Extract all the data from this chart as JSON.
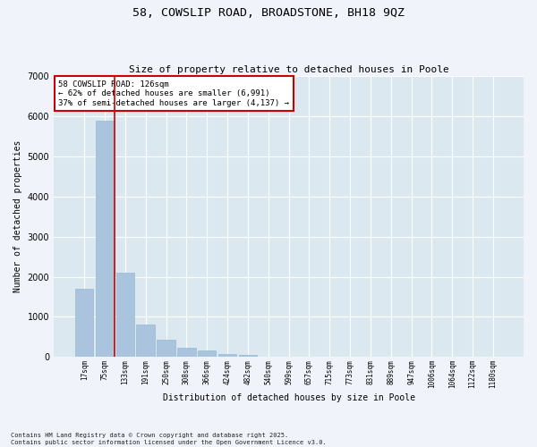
{
  "title1": "58, COWSLIP ROAD, BROADSTONE, BH18 9QZ",
  "title2": "Size of property relative to detached houses in Poole",
  "xlabel": "Distribution of detached houses by size in Poole",
  "ylabel": "Number of detached properties",
  "annotation_title": "58 COWSLIP ROAD: 126sqm",
  "annotation_line1": "← 62% of detached houses are smaller (6,991)",
  "annotation_line2": "37% of semi-detached houses are larger (4,137) →",
  "categories": [
    "17sqm",
    "75sqm",
    "133sqm",
    "191sqm",
    "250sqm",
    "308sqm",
    "366sqm",
    "424sqm",
    "482sqm",
    "540sqm",
    "599sqm",
    "657sqm",
    "715sqm",
    "773sqm",
    "831sqm",
    "889sqm",
    "947sqm",
    "1006sqm",
    "1064sqm",
    "1122sqm",
    "1180sqm"
  ],
  "values": [
    1700,
    5900,
    2100,
    800,
    420,
    230,
    160,
    80,
    50,
    15,
    5,
    2,
    0,
    0,
    0,
    0,
    0,
    0,
    0,
    0,
    0
  ],
  "bar_color": "#aac4de",
  "bar_edge_color": "#8cb4d0",
  "vline_color": "#cc0000",
  "annotation_box_edge": "#cc0000",
  "fig_background": "#f0f4fa",
  "axes_background": "#dce8f0",
  "grid_color": "#ffffff",
  "ylim": [
    0,
    7000
  ],
  "yticks": [
    0,
    1000,
    2000,
    3000,
    4000,
    5000,
    6000,
    7000
  ],
  "footer_line1": "Contains HM Land Registry data © Crown copyright and database right 2025.",
  "footer_line2": "Contains public sector information licensed under the Open Government Licence v3.0."
}
